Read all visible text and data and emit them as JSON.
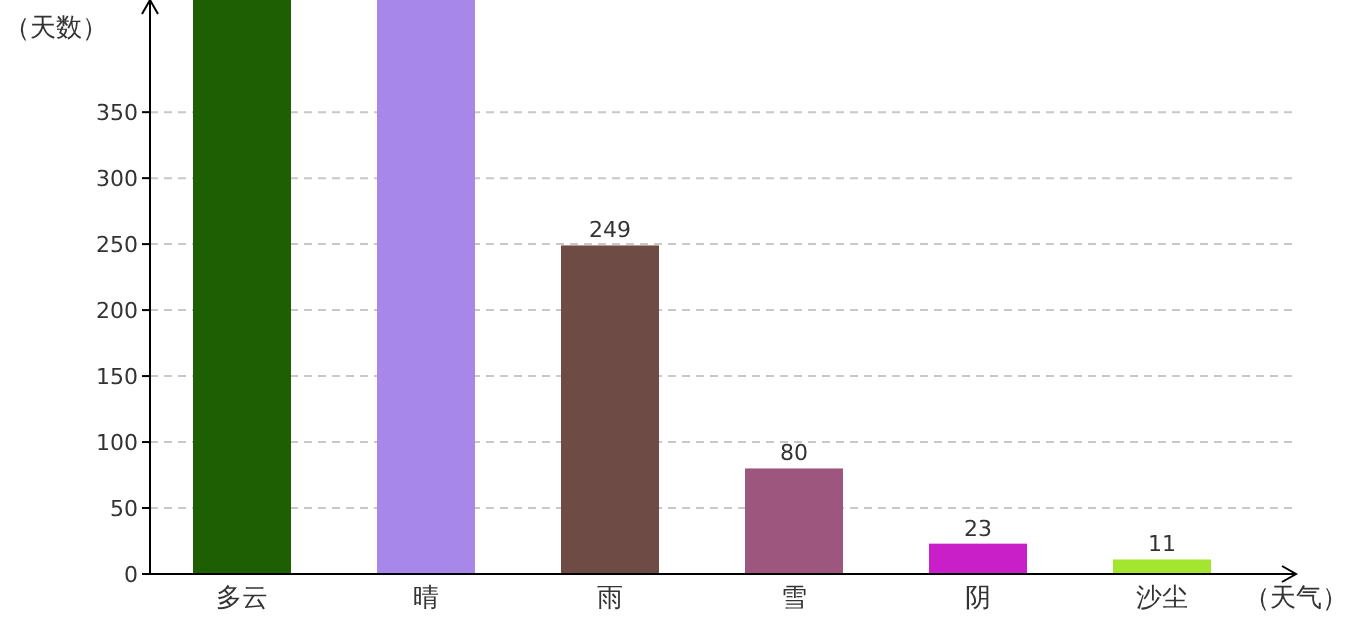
{
  "chart_data": {
    "type": "bar",
    "ylabel": "（天数）",
    "xlabel": "（天气）",
    "categories": [
      "多云",
      "晴",
      "雨",
      "雪",
      "阴",
      "沙尘"
    ],
    "values": [
      435,
      435,
      249,
      80,
      23,
      11
    ],
    "colors": [
      "#1e5f04",
      "#a887eb",
      "#6f4b45",
      "#9d577f",
      "#c81fc8",
      "#a3e52f"
    ],
    "value_labels": [
      null,
      null,
      "249",
      "80",
      "23",
      "11"
    ],
    "ylim": [
      0,
      435
    ],
    "yticks": [
      0,
      50,
      100,
      150,
      200,
      250,
      300,
      350
    ],
    "grid": "y"
  }
}
